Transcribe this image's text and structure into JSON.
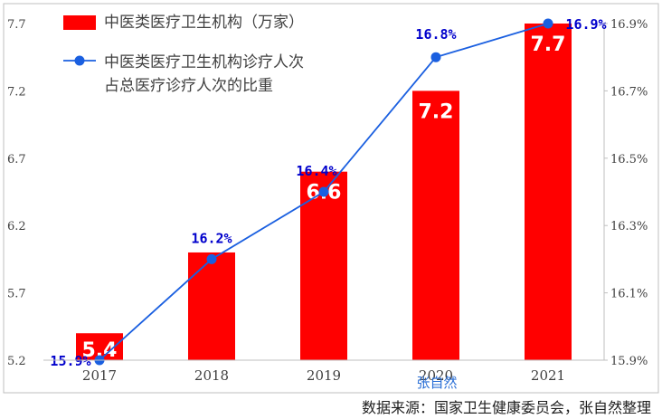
{
  "chart_data": {
    "type": "bar",
    "categories": [
      "2017",
      "2018",
      "2019",
      "2020",
      "2021"
    ],
    "series": [
      {
        "name_lines": [
          "中医类医疗卫生机构（万家）"
        ],
        "kind": "bar",
        "axis": "left",
        "color": "#ff0000",
        "values": [
          5.4,
          6.0,
          6.6,
          7.2,
          7.7
        ],
        "labels": [
          "5.4",
          "",
          "6.6",
          "7.2",
          "7.7"
        ]
      },
      {
        "name_lines": [
          "中医类医疗卫生机构诊疗人次",
          "占总医疗诊疗人次的比重"
        ],
        "kind": "line",
        "axis": "right",
        "color": "#1a5fe0",
        "values": [
          15.9,
          16.2,
          16.4,
          16.8,
          16.9
        ],
        "labels": [
          "15.9%",
          "16.2%",
          "16.4%",
          "16.8%",
          "16.9%"
        ]
      }
    ],
    "y_left": {
      "lim": [
        5.2,
        7.7
      ],
      "ticks": [
        "7.7",
        "7.2",
        "6.7",
        "6.2",
        "5.7",
        "5.2"
      ]
    },
    "y_right": {
      "lim": [
        15.9,
        16.9
      ],
      "ticks": [
        "16.9%",
        "16.7%",
        "16.5%",
        "16.3%",
        "16.1%",
        "15.9%"
      ]
    },
    "grid": false,
    "legend_position": "top-left",
    "watermark": "张自然",
    "source": "数据来源：国家卫生健康委员会，张自然整理"
  }
}
